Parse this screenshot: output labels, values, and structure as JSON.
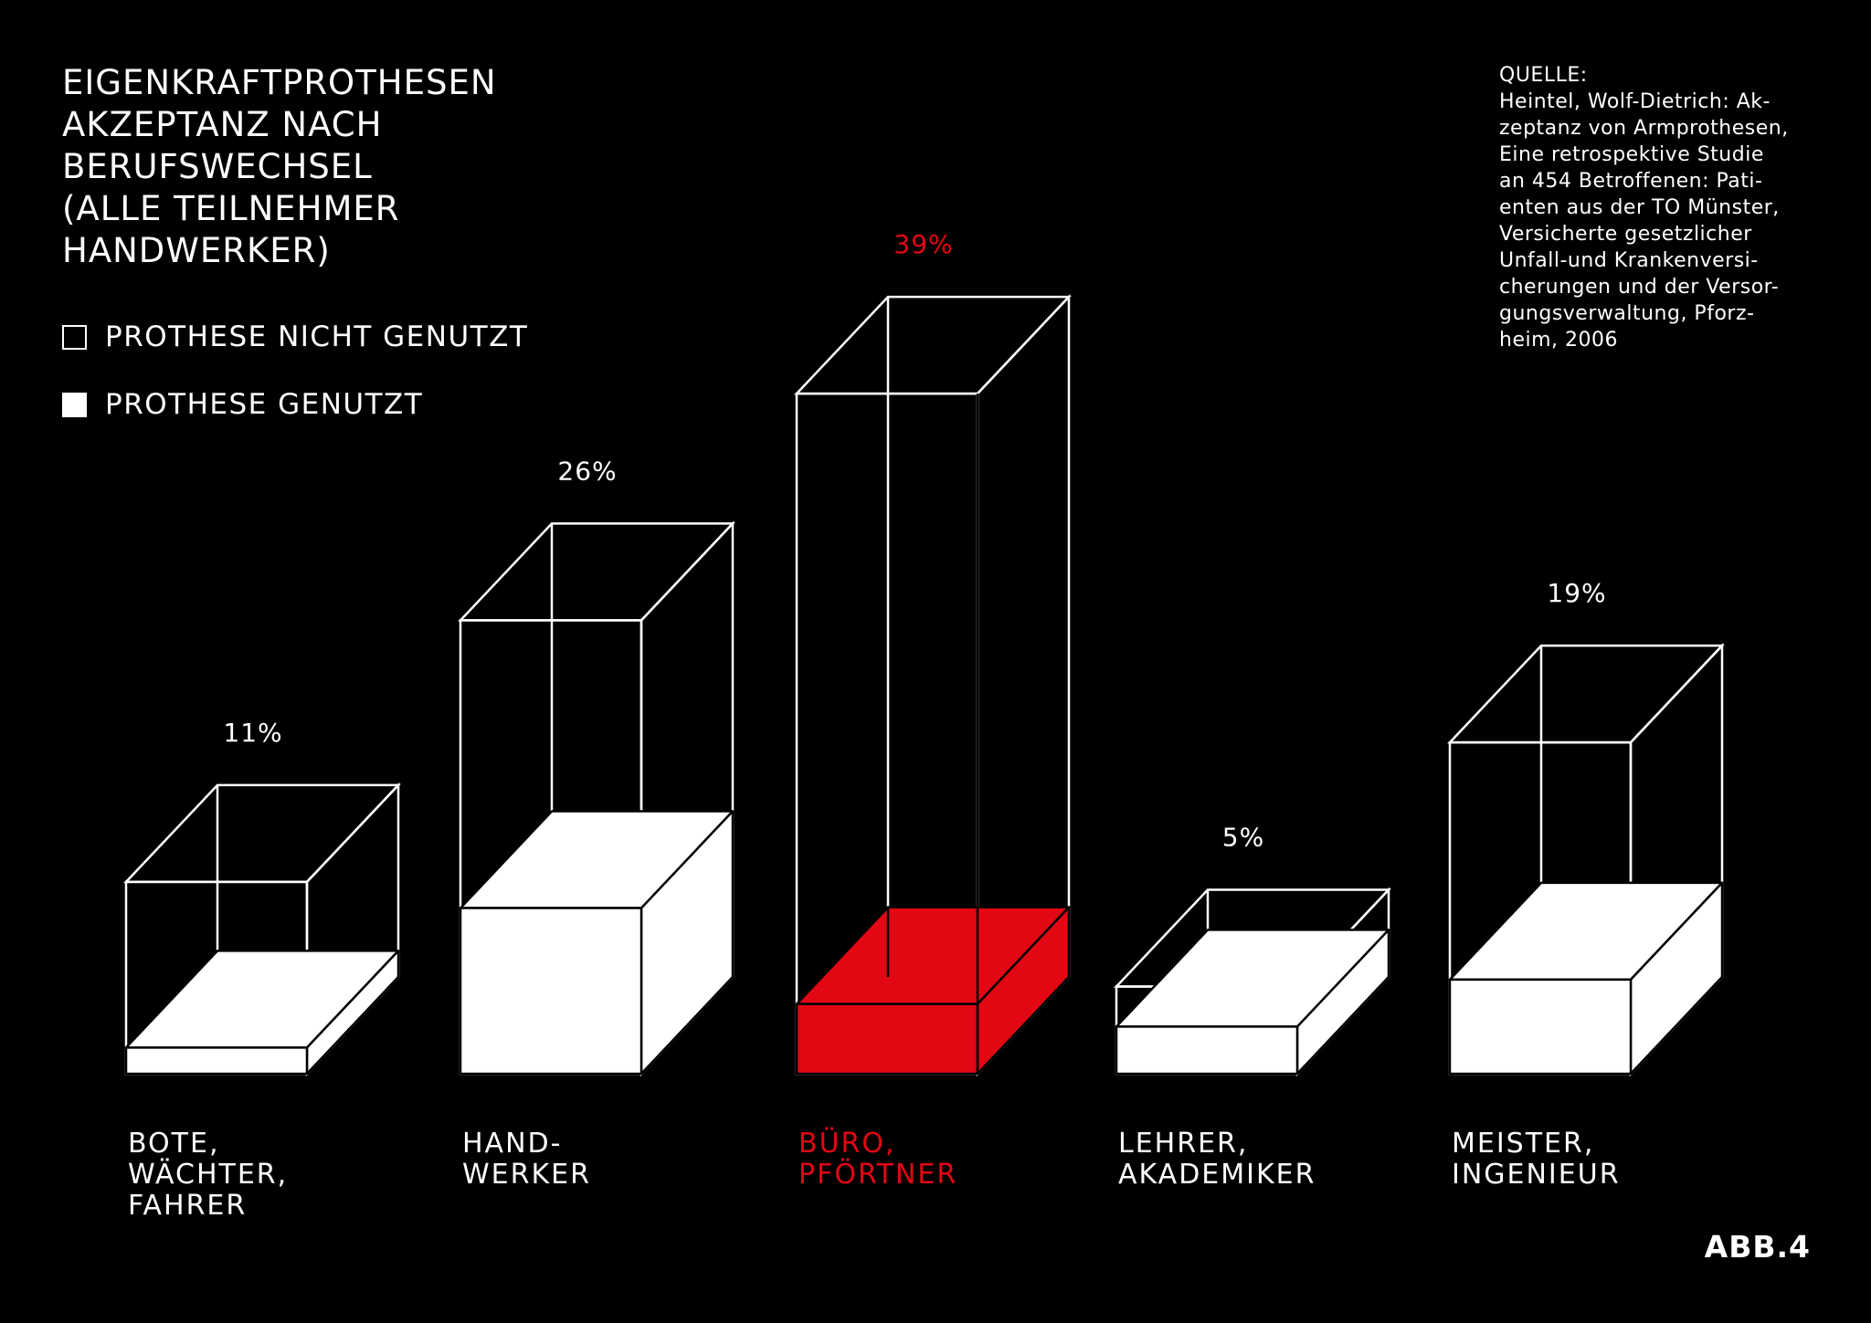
{
  "title_lines": [
    "EIGENKRAFTPROTHESEN",
    "AKZEPTANZ NACH",
    "BERUFSWECHSEL",
    "(ALLE TEILNEHMER",
    "HANDWERKER)"
  ],
  "legend": {
    "not_used": "PROTHESE NICHT GENUTZT",
    "used": "PROTHESE GENUTZT"
  },
  "source_lines": [
    "QUELLE:",
    "Heintel, Wolf-Dietrich: Ak-",
    "zeptanz von Armprothesen,",
    "Eine retrospektive Studie",
    "an 454 Betroffenen: Pati-",
    "enten aus der TO Münster,",
    "Versicherte gesetzlicher",
    "Unfall-und Krankenversi-",
    "cherungen und der Versor-",
    "gungsverwaltung, Pforz-",
    "heim, 2006"
  ],
  "footer": "ABB.4",
  "colors": {
    "background": "#000000",
    "foreground": "#ffffff",
    "accent": "#e30613"
  },
  "chart_data": {
    "type": "bar",
    "style": "3d-stacked",
    "categories": [
      {
        "lines": [
          "BOTE,",
          "WÄCHTER,",
          "FAHRER"
        ],
        "highlight": false
      },
      {
        "lines": [
          "HAND-",
          "WERKER"
        ],
        "highlight": false
      },
      {
        "lines": [
          "BÜRO,",
          "PFÖRTNER"
        ],
        "highlight": true
      },
      {
        "lines": [
          "LEHRER,",
          "AKADEMIKER"
        ],
        "highlight": false
      },
      {
        "lines": [
          "MEISTER,",
          "INGENIEUR"
        ],
        "highlight": false
      }
    ],
    "total_labels": [
      "11%",
      "26%",
      "39%",
      "5%",
      "19%"
    ],
    "series": [
      {
        "name": "PROTHESE GENUTZT",
        "values": [
          1.5,
          9.5,
          4,
          2.7,
          5.4
        ]
      },
      {
        "name": "PROTHESE NICHT GENUTZT",
        "values": [
          9.5,
          16.5,
          35,
          2.3,
          13.6
        ]
      }
    ],
    "legend_position": "top-left",
    "grid": false,
    "axes": false
  }
}
